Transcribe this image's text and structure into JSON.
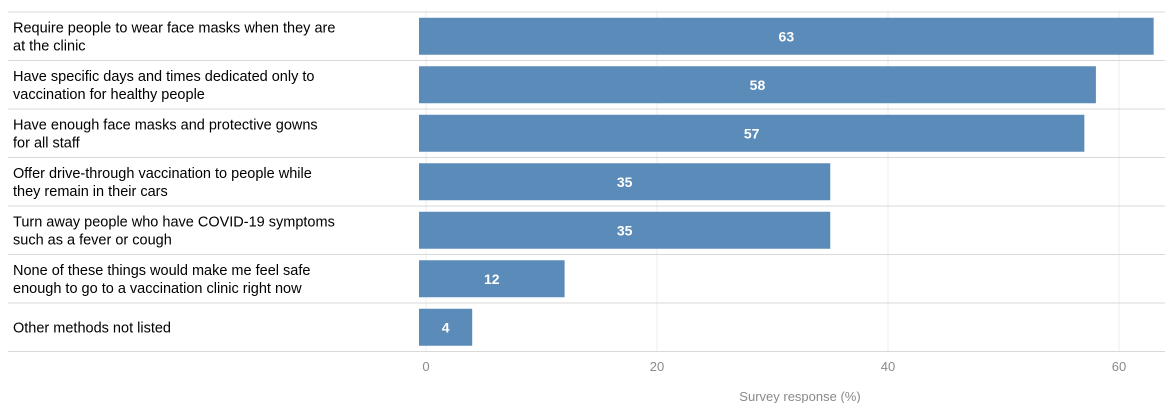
{
  "chart_data": {
    "type": "bar",
    "orientation": "horizontal",
    "categories": [
      [
        "Require people to wear face masks when they are",
        "at the clinic"
      ],
      [
        "Have specific days and times dedicated only to",
        "vaccination for healthy people"
      ],
      [
        "Have enough face masks and protective gowns",
        "for all staff"
      ],
      [
        "Offer drive-through vaccination to people while",
        "they remain in their cars"
      ],
      [
        "Turn away people who have COVID-19 symptoms",
        "such as a fever or cough"
      ],
      [
        "None of these things would make me feel safe",
        "enough to go to a vaccination clinic right now"
      ],
      [
        "Other methods not listed"
      ]
    ],
    "values": [
      63,
      58,
      57,
      35,
      35,
      12,
      4
    ],
    "xlabel": "Survey response (%)",
    "xticks": [
      0,
      20,
      40,
      60
    ],
    "xlim": [
      0,
      64
    ],
    "grid": true,
    "legend": "none",
    "colors": {
      "bar": "#5b8cb9",
      "bar_label": "#ffffff",
      "grid": "#ececec",
      "separator": "#d9d9d9",
      "tick": "#8a8a8a"
    }
  }
}
